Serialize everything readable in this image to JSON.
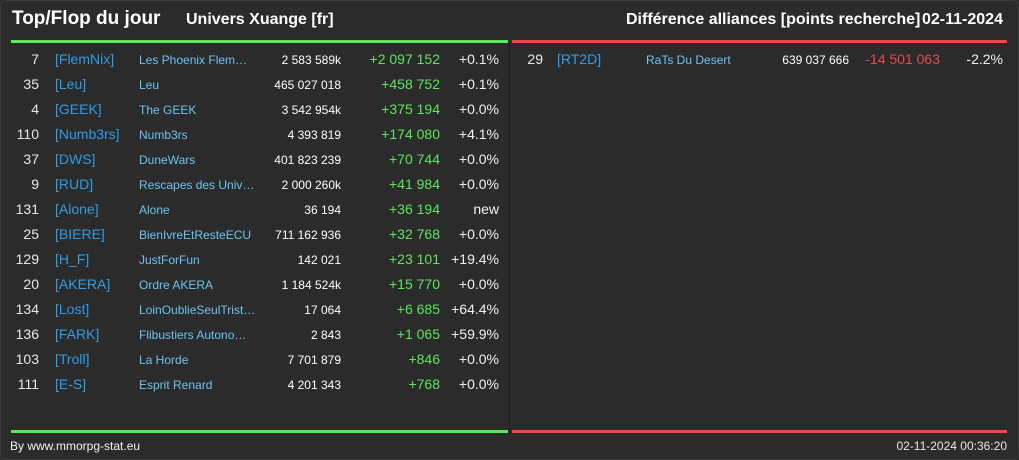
{
  "header": {
    "title": "Top/Flop du jour",
    "universe": "Univers Xuange [fr]",
    "subtitle": "Différence alliances [points recherche]",
    "date": "02-11-2024"
  },
  "colors": {
    "top_accent": "#5ce65c",
    "flop_accent": "#e84a4a",
    "tag_blue": "#2e9ce6",
    "name_blue": "#6cc4f2",
    "background": "#2b2b2b"
  },
  "top": [
    {
      "rank": "7",
      "tag": "[FlemNix]",
      "name": "Les Phoenix Flem…",
      "points": "2 583 589k",
      "diff": "+2 097 152",
      "pct": "+0.1%"
    },
    {
      "rank": "35",
      "tag": "[Leu]",
      "name": "Leu",
      "points": "465 027 018",
      "diff": "+458 752",
      "pct": "+0.1%"
    },
    {
      "rank": "4",
      "tag": "[GEEK]",
      "name": "The GEEK",
      "points": "3 542 954k",
      "diff": "+375 194",
      "pct": "+0.0%"
    },
    {
      "rank": "110",
      "tag": "[Numb3rs]",
      "name": "Numb3rs",
      "points": "4 393 819",
      "diff": "+174 080",
      "pct": "+4.1%"
    },
    {
      "rank": "37",
      "tag": "[DWS]",
      "name": "DuneWars",
      "points": "401 823 239",
      "diff": "+70 744",
      "pct": "+0.0%"
    },
    {
      "rank": "9",
      "tag": "[RUD]",
      "name": "Rescapes des Univ…",
      "points": "2 000 260k",
      "diff": "+41 984",
      "pct": "+0.0%"
    },
    {
      "rank": "131",
      "tag": "[Alone]",
      "name": "Alone",
      "points": "36 194",
      "diff": "+36 194",
      "pct": "new"
    },
    {
      "rank": "25",
      "tag": "[BIERE]",
      "name": "BienIvreEtResteECU",
      "points": "711 162 936",
      "diff": "+32 768",
      "pct": "+0.0%"
    },
    {
      "rank": "129",
      "tag": "[H_F]",
      "name": "JustForFun",
      "points": "142 021",
      "diff": "+23 101",
      "pct": "+19.4%"
    },
    {
      "rank": "20",
      "tag": "[AKERA]",
      "name": "Ordre AKERA",
      "points": "1 184 524k",
      "diff": "+15 770",
      "pct": "+0.0%"
    },
    {
      "rank": "134",
      "tag": "[Lost]",
      "name": "LoinOublieSeulTrist…",
      "points": "17 064",
      "diff": "+6 685",
      "pct": "+64.4%"
    },
    {
      "rank": "136",
      "tag": "[FARK]",
      "name": "Flibustiers Autono…",
      "points": "2 843",
      "diff": "+1 065",
      "pct": "+59.9%"
    },
    {
      "rank": "103",
      "tag": "[Troll]",
      "name": "La Horde",
      "points": "7 701 879",
      "diff": "+846",
      "pct": "+0.0%"
    },
    {
      "rank": "111",
      "tag": "[E-S]",
      "name": "Esprit Renard",
      "points": "4 201 343",
      "diff": "+768",
      "pct": "+0.0%"
    }
  ],
  "flop": [
    {
      "rank": "29",
      "tag": "[RT2D]",
      "name": "RaTs Du Desert",
      "points": "639 037 666",
      "diff": "-14 501 063",
      "pct": "-2.2%"
    }
  ],
  "footer": {
    "source": "By www.mmorpg-stat.eu",
    "timestamp": "02-11-2024 00:36:20"
  }
}
